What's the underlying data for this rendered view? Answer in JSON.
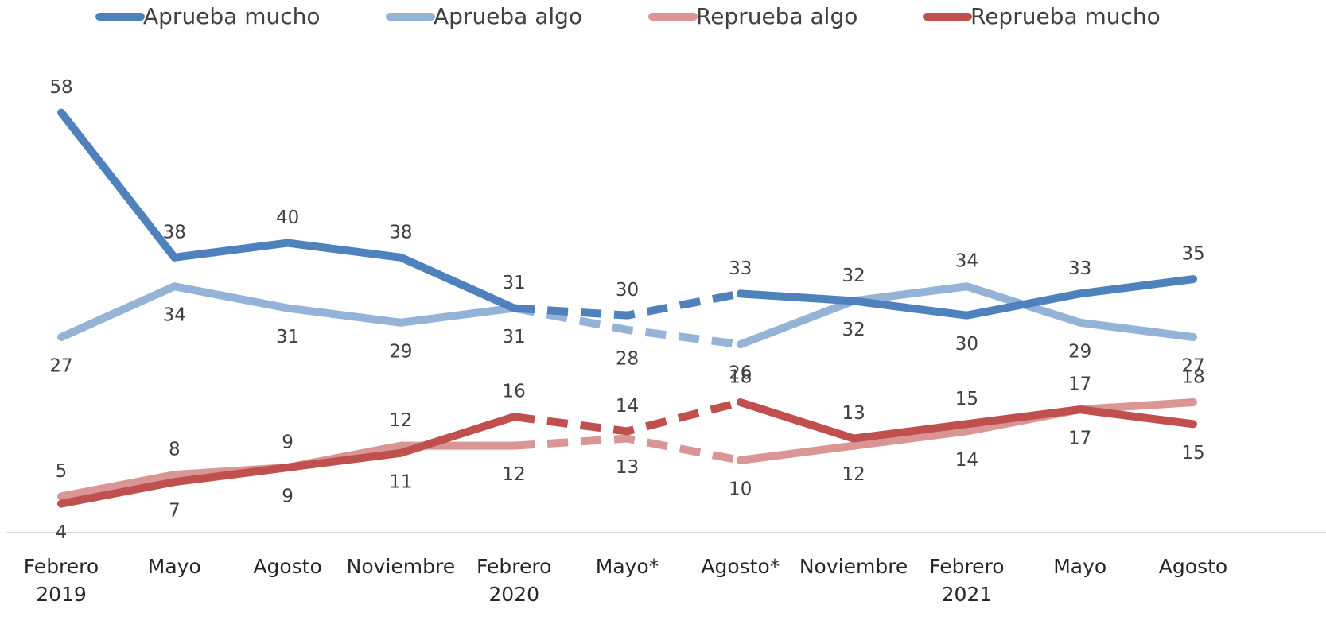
{
  "chart_data": {
    "type": "line",
    "categories": [
      "Febrero\n2019",
      "Mayo",
      "Agosto",
      "Noviembre",
      "Febrero\n2020",
      "Mayo*",
      "Agosto*",
      "Noviembre",
      "Febrero\n2021",
      "Mayo",
      "Agosto"
    ],
    "series": [
      {
        "name": "Aprueba mucho",
        "color": "#4f81bd",
        "values": [
          58,
          38,
          40,
          38,
          31,
          30,
          33,
          32,
          30,
          33,
          35
        ]
      },
      {
        "name": "Aprueba algo",
        "color": "#95b3d7",
        "values": [
          27,
          34,
          31,
          29,
          31,
          28,
          26,
          32,
          34,
          29,
          27
        ]
      },
      {
        "name": "Reprueba algo",
        "color": "#d99694",
        "values": [
          5,
          8,
          9,
          12,
          12,
          13,
          10,
          12,
          14,
          17,
          18
        ]
      },
      {
        "name": "Reprueba mucho",
        "color": "#c0504d",
        "values": [
          4,
          7,
          9,
          11,
          16,
          14,
          18,
          13,
          15,
          17,
          15
        ]
      }
    ],
    "ylim": [
      0,
      65
    ],
    "dashed_range": [
      4,
      6
    ],
    "legend": "top"
  }
}
